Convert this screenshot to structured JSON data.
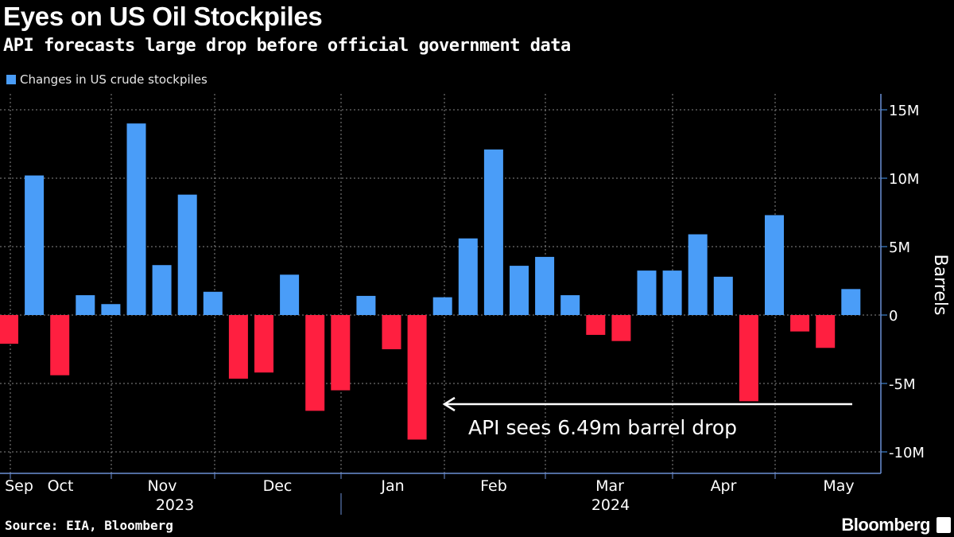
{
  "header": {
    "title": "Eyes on US Oil Stockpiles",
    "subtitle": "API forecasts large drop before official government data"
  },
  "footer": {
    "source": "Source: EIA, Bloomberg",
    "brand": "Bloomberg"
  },
  "chart_data": {
    "type": "bar",
    "title": "Eyes on US Oil Stockpiles",
    "subtitle": "API forecasts large drop before official government data",
    "legend": [
      {
        "name": "Changes in US crude stockpiles",
        "color": "#4a9df8"
      }
    ],
    "legend_placement": "top-left",
    "ylabel": "Barrels",
    "ylim": [
      -11.5,
      16.3
    ],
    "y_unit": "M barrels",
    "y_ticks": [
      {
        "v": 15,
        "label": "15M"
      },
      {
        "v": 10,
        "label": "10M"
      },
      {
        "v": 5,
        "label": "5M"
      },
      {
        "v": 0,
        "label": "0"
      },
      {
        "v": -5,
        "label": "-5M"
      },
      {
        "v": -10,
        "label": "-10M"
      }
    ],
    "y_axis_side": "right",
    "x_month_labels": [
      "Sep",
      "Oct",
      "Nov",
      "Dec",
      "Jan",
      "Feb",
      "Mar",
      "Apr",
      "May"
    ],
    "x_year_labels": [
      "2023",
      "2024"
    ],
    "grid": true,
    "colors": {
      "positive": "#4a9df8",
      "negative": "#ff1f40"
    },
    "values": [
      -2.1,
      10.2,
      -4.4,
      1.45,
      0.8,
      14.0,
      3.65,
      8.8,
      1.7,
      -4.65,
      -4.2,
      2.95,
      -7.0,
      -5.5,
      1.4,
      -2.5,
      -9.1,
      1.3,
      5.6,
      12.1,
      3.6,
      4.25,
      1.45,
      -1.45,
      -1.9,
      3.25,
      3.25,
      5.9,
      2.8,
      -6.3,
      7.3,
      -1.2,
      -2.4,
      1.9
    ],
    "annotation": {
      "text": "API sees 6.49m barrel drop",
      "value": -6.49
    }
  }
}
